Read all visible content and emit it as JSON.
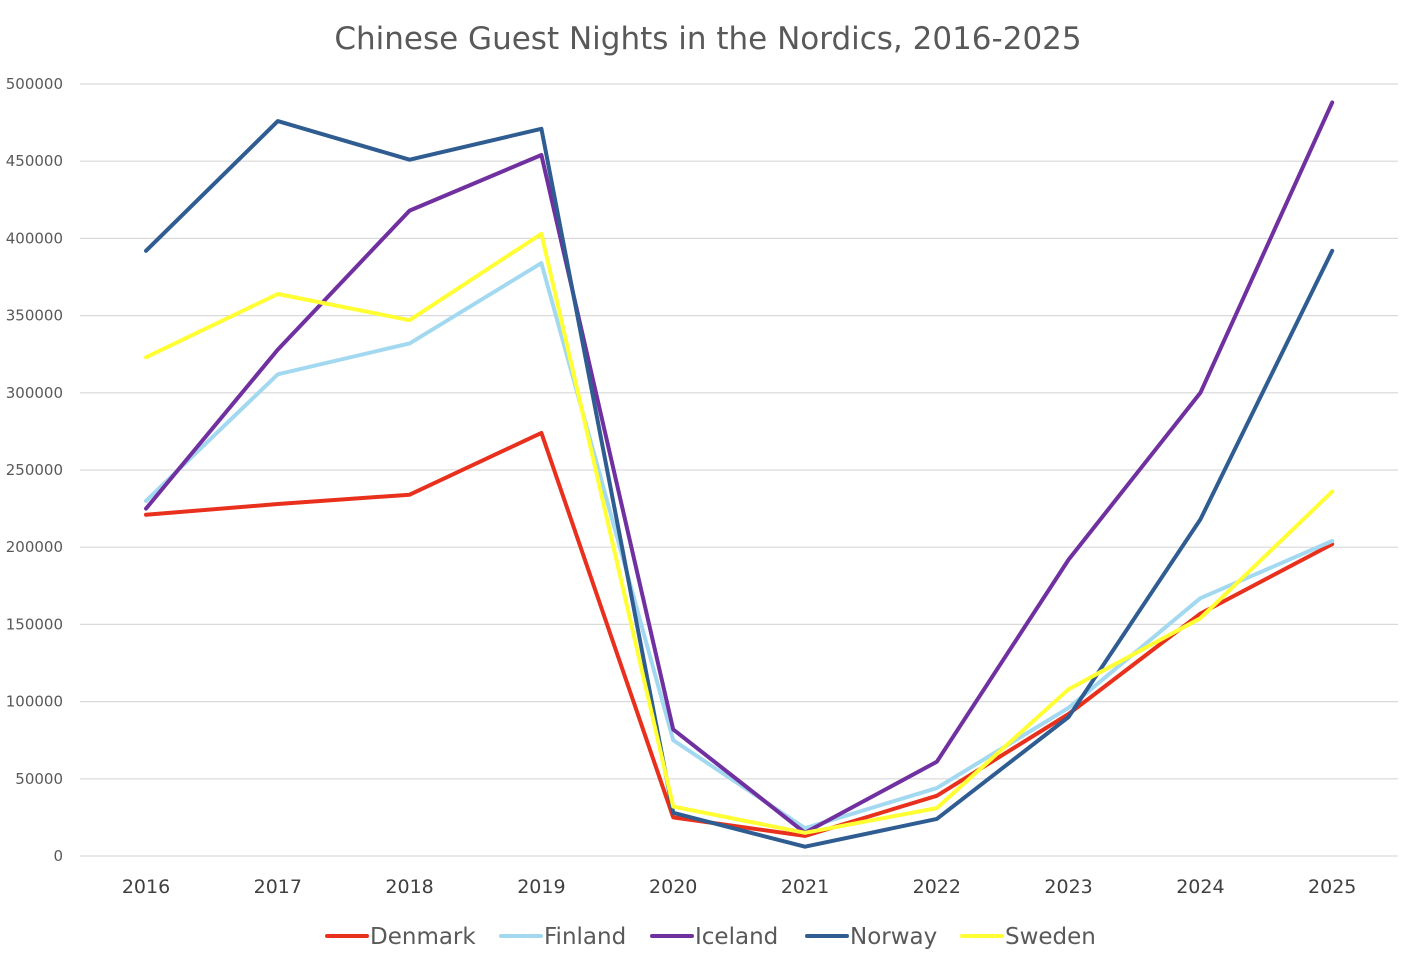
{
  "chart_data": {
    "type": "line",
    "title": "Chinese Guest Nights in the Nordics, 2016-2025",
    "xlabel": "",
    "ylabel": "",
    "categories": [
      "2016",
      "2017",
      "2018",
      "2019",
      "2020",
      "2021",
      "2022",
      "2023",
      "2024",
      "2025"
    ],
    "ylim": [
      0,
      500000
    ],
    "yticks": [
      "0",
      "50000",
      "100000",
      "150000",
      "200000",
      "250000",
      "300000",
      "350000",
      "400000",
      "450000",
      "500000"
    ],
    "ytick_values": [
      0,
      50000,
      100000,
      150000,
      200000,
      250000,
      300000,
      350000,
      400000,
      450000,
      500000
    ],
    "grid": true,
    "legend_position": "bottom",
    "series": [
      {
        "name": "Denmark",
        "color": "#e8301c",
        "values": [
          221000,
          228000,
          234000,
          274000,
          25000,
          13000,
          39000,
          92000,
          157000,
          202000
        ]
      },
      {
        "name": "Finland",
        "color": "#a3d9f0",
        "values": [
          230000,
          312000,
          332000,
          384000,
          75000,
          18000,
          44000,
          96000,
          167000,
          204000
        ]
      },
      {
        "name": "Iceland",
        "color": "#7030a0",
        "values": [
          225000,
          328000,
          418000,
          454000,
          82000,
          15000,
          61000,
          192000,
          300000,
          488000
        ]
      },
      {
        "name": "Norway",
        "color": "#2f5d91",
        "values": [
          392000,
          476000,
          451000,
          471000,
          28000,
          6000,
          24000,
          90000,
          218000,
          392000
        ]
      },
      {
        "name": "Sweden",
        "color": "#ffff33",
        "values": [
          323000,
          364000,
          347000,
          403000,
          32000,
          15000,
          31000,
          108000,
          154000,
          236000
        ]
      }
    ]
  }
}
